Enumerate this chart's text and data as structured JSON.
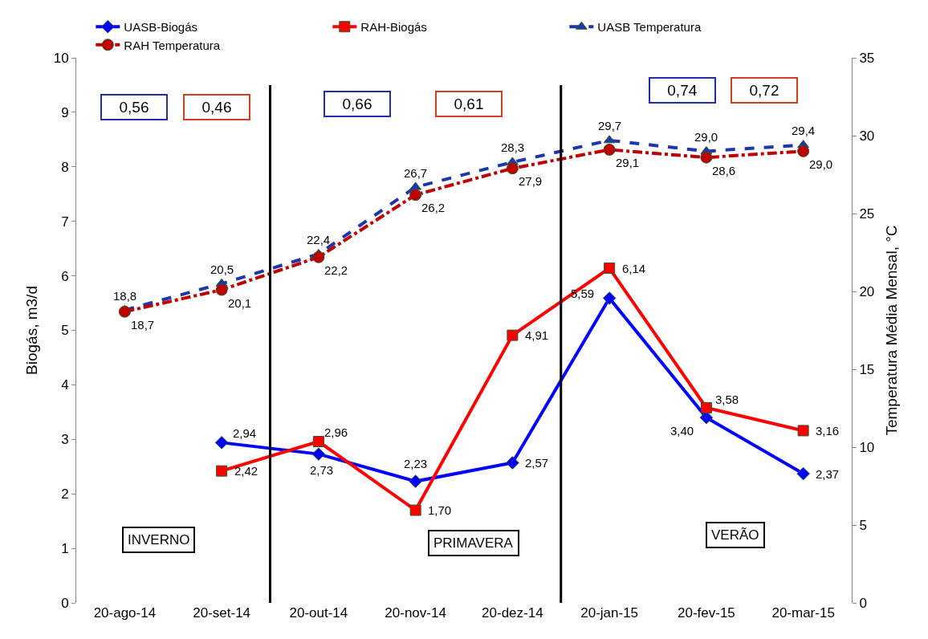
{
  "chart_data": {
    "type": "line",
    "categories": [
      "20-ago-14",
      "20-set-14",
      "20-out-14",
      "20-nov-14",
      "20-dez-14",
      "20-jan-15",
      "20-fev-15",
      "20-mar-15"
    ],
    "ylabel": "Biogás, m3/d",
    "y2label": "Temperatura Média Mensal, °C",
    "ylim": [
      0,
      10
    ],
    "yticks": [
      0,
      1,
      2,
      3,
      4,
      5,
      6,
      7,
      8,
      9,
      10
    ],
    "y2lim": [
      0,
      35
    ],
    "y2ticks": [
      0,
      5,
      10,
      15,
      20,
      25,
      30,
      35
    ],
    "legend": "top",
    "series": [
      {
        "name": "UASB-Biogás",
        "color": "#0000ff",
        "marker": "diamond",
        "line_style": "solid",
        "values": [
          null,
          2.94,
          2.73,
          2.23,
          2.57,
          5.59,
          3.4,
          2.37
        ],
        "value_labels": [
          null,
          "2,94",
          "2,73",
          "2,23",
          "2,57",
          "5,59",
          "3,40",
          "2,37"
        ]
      },
      {
        "name": "RAH-Biogás",
        "color": "#ff0000",
        "marker": "square",
        "line_style": "solid",
        "values": [
          null,
          2.42,
          2.96,
          1.7,
          4.91,
          6.14,
          3.58,
          3.16
        ],
        "value_labels": [
          null,
          "2,42",
          "2,96",
          "1,70",
          "4,91",
          "6,14",
          "3,58",
          "3,16"
        ]
      },
      {
        "name": "UASB Temperatura",
        "color": "#1f35b0",
        "marker": "triangle",
        "line_style": "dashed",
        "axis": "y2",
        "values": [
          18.8,
          20.5,
          22.4,
          26.7,
          28.3,
          29.7,
          29.0,
          29.4
        ],
        "value_labels": [
          "18,8",
          "20,5",
          "22,4",
          "26,7",
          "28,3",
          "29,7",
          "29,0",
          "29,4"
        ]
      },
      {
        "name": "RAH Temperatura",
        "color": "#c00000",
        "marker": "circle",
        "line_style": "dashdot",
        "axis": "y2",
        "values": [
          18.7,
          20.1,
          22.2,
          26.2,
          27.9,
          29.1,
          28.6,
          29.0
        ],
        "value_labels": [
          "18,7",
          "20,1",
          "22,2",
          "26,2",
          "27,9",
          "29,1",
          "28,6",
          "29,0"
        ]
      }
    ],
    "annotations": [
      "0,56",
      "0,46",
      "0,66",
      "0,61",
      "0,74",
      "0,72",
      "INVERNO",
      "PRIMAVERA",
      "VERÃO"
    ]
  }
}
